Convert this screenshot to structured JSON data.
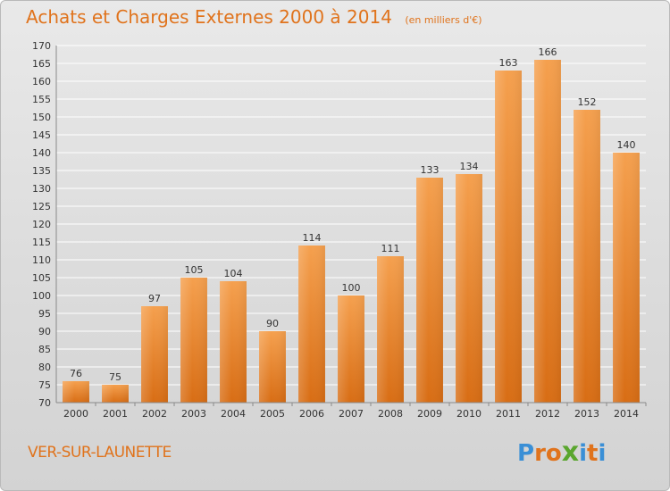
{
  "header": {
    "title": "Achats et Charges Externes 2000 à 2014",
    "subtitle": "(en milliers d'€)"
  },
  "footer": {
    "town": "VER-SUR-LAUNETTE",
    "logo_letters": [
      "P",
      "r",
      "o",
      "x",
      "i",
      "t",
      "i"
    ],
    "logo_colors": [
      "#3a8fd6",
      "#e0731c",
      "#e0731c",
      "#5aa62e",
      "#3a8fd6",
      "#e0731c",
      "#3a8fd6"
    ]
  },
  "colors": {
    "bar_top": "#f5a04e",
    "bar_bottom": "#d86d14",
    "grid": "#ffffff",
    "tick_text": "#333333"
  },
  "chart_data": {
    "type": "bar",
    "title": "Achats et Charges Externes 2000 à 2014",
    "subtitle": "(en milliers d'€)",
    "categories": [
      "2000",
      "2001",
      "2002",
      "2003",
      "2004",
      "2005",
      "2006",
      "2007",
      "2008",
      "2009",
      "2010",
      "2011",
      "2012",
      "2013",
      "2014"
    ],
    "values": [
      76,
      75,
      97,
      105,
      104,
      90,
      114,
      100,
      111,
      133,
      134,
      163,
      166,
      152,
      140
    ],
    "ylim": [
      70,
      170
    ],
    "ytick_step": 5,
    "yticks": [
      "70",
      "75",
      "80",
      "85",
      "90",
      "95",
      "100",
      "105",
      "110",
      "115",
      "120",
      "125",
      "130",
      "135",
      "140",
      "145",
      "150",
      "155",
      "160",
      "165",
      "170"
    ],
    "grid": true,
    "legend": "none"
  }
}
